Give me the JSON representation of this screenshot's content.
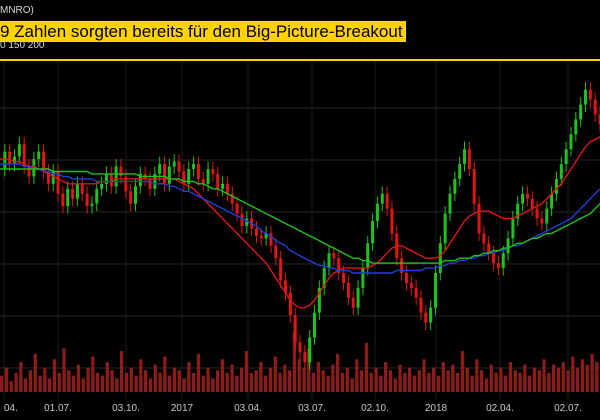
{
  "header": {
    "ticker": "MNRO)",
    "title": "9 Zahlen sorgten bereits für den Big-Picture-Breakout",
    "ma_legend": "0 150 200"
  },
  "colors": {
    "title_bg": "#ffd200",
    "resistance": "#ffd200",
    "up": "#1fc21f",
    "down": "#e01616",
    "ma_short": "#e01616",
    "ma_mid": "#1f3fd6",
    "ma_long": "#1fc21f",
    "volume": "#8a1c1c"
  },
  "chart_data": {
    "type": "line",
    "title": "9 Zahlen sorgten bereits für den Big-Picture-Breakout",
    "x_tick_labels": [
      "04.",
      "01.07.",
      "03.10.",
      "2017",
      "03.04.",
      "03.07.",
      "02.10.",
      "2018",
      "02.04.",
      "02.07."
    ],
    "series": [
      {
        "name": "price",
        "color": "#1fc21f",
        "values": [
          86,
          93,
          88,
          91,
          96,
          87,
          83,
          90,
          93,
          85,
          80,
          85,
          76,
          71,
          78,
          74,
          80,
          76,
          71,
          72,
          78,
          80,
          84,
          79,
          87,
          83,
          77,
          72,
          79,
          84,
          82,
          78,
          84,
          88,
          80,
          87,
          89,
          85,
          80,
          86,
          88,
          82,
          80,
          86,
          84,
          78,
          80,
          76,
          72,
          68,
          63,
          66,
          62,
          59,
          58,
          60,
          55,
          50,
          41,
          36,
          27,
          16,
          12,
          8,
          18,
          28,
          38,
          46,
          52,
          50,
          44,
          40,
          34,
          30,
          38,
          46,
          56,
          65,
          72,
          76,
          70,
          60,
          50,
          44,
          40,
          38,
          34,
          28,
          24,
          30,
          44,
          56,
          68,
          76,
          82,
          88,
          94,
          86,
          72,
          60,
          56,
          52,
          48,
          46,
          52,
          58,
          66,
          72,
          76,
          74,
          70,
          66,
          64,
          70,
          76,
          82,
          88,
          94,
          100,
          106,
          112,
          118,
          114,
          108,
          104
        ]
      },
      {
        "name": "ma_short",
        "color": "#e01616",
        "values": [
          90,
          90,
          90,
          89,
          89,
          88,
          87,
          87,
          86,
          85,
          84,
          83,
          82,
          81,
          80,
          80,
          80,
          80,
          80,
          80,
          80,
          81,
          81,
          81,
          82,
          82,
          82,
          82,
          82,
          82,
          82,
          82,
          82,
          82,
          82,
          82,
          82,
          81,
          80,
          79,
          78,
          76,
          74,
          72,
          70,
          68,
          66,
          64,
          62,
          60,
          58,
          56,
          54,
          52,
          50,
          48,
          45,
          42,
          39,
          36,
          33,
          31,
          30,
          30,
          31,
          33,
          36,
          39,
          42,
          44,
          45,
          46,
          46,
          46,
          46,
          46,
          46,
          47,
          48,
          50,
          52,
          54,
          55,
          55,
          54,
          53,
          52,
          51,
          50,
          50,
          50,
          51,
          53,
          56,
          59,
          62,
          65,
          67,
          68,
          69,
          69,
          69,
          68,
          67,
          66,
          66,
          66,
          67,
          68,
          69,
          70,
          71,
          72,
          74,
          76,
          78,
          80,
          83,
          86,
          89,
          92,
          95,
          97,
          98,
          99
        ]
      },
      {
        "name": "ma_mid",
        "color": "#1f3fd6",
        "values": [
          88,
          88,
          88,
          88,
          88,
          87,
          87,
          86,
          86,
          85,
          85,
          84,
          84,
          83,
          83,
          82,
          82,
          82,
          82,
          82,
          81,
          81,
          81,
          81,
          81,
          81,
          81,
          81,
          81,
          81,
          81,
          81,
          80,
          80,
          80,
          79,
          79,
          78,
          77,
          77,
          76,
          75,
          74,
          73,
          72,
          71,
          70,
          69,
          68,
          67,
          66,
          65,
          64,
          63,
          61,
          60,
          59,
          57,
          56,
          55,
          53,
          52,
          51,
          50,
          49,
          48,
          47,
          47,
          46,
          46,
          45,
          45,
          45,
          44,
          44,
          44,
          44,
          44,
          44,
          44,
          44,
          44,
          45,
          45,
          45,
          45,
          45,
          45,
          46,
          46,
          46,
          47,
          47,
          48,
          48,
          49,
          49,
          50,
          50,
          51,
          51,
          52,
          52,
          53,
          53,
          54,
          55,
          55,
          56,
          57,
          58,
          59,
          60,
          61,
          62,
          63,
          64,
          65,
          66,
          68,
          70,
          72,
          74,
          76,
          78
        ]
      },
      {
        "name": "ma_long",
        "color": "#1fc21f",
        "values": [
          86,
          86,
          86,
          86,
          86,
          86,
          86,
          86,
          86,
          86,
          86,
          85,
          85,
          85,
          85,
          85,
          85,
          85,
          85,
          84,
          84,
          84,
          84,
          84,
          84,
          84,
          84,
          84,
          84,
          83,
          83,
          83,
          83,
          83,
          83,
          82,
          82,
          82,
          81,
          81,
          81,
          80,
          80,
          79,
          78,
          78,
          77,
          76,
          75,
          74,
          73,
          72,
          71,
          70,
          69,
          68,
          67,
          66,
          65,
          64,
          63,
          62,
          61,
          60,
          59,
          58,
          57,
          56,
          55,
          54,
          53,
          52,
          51,
          50,
          50,
          49,
          49,
          48,
          48,
          48,
          48,
          48,
          48,
          48,
          48,
          48,
          48,
          48,
          48,
          48,
          48,
          48,
          49,
          49,
          49,
          50,
          50,
          50,
          51,
          51,
          52,
          52,
          53,
          53,
          54,
          54,
          55,
          56,
          56,
          57,
          58,
          58,
          59,
          60,
          60,
          61,
          62,
          63,
          64,
          65,
          66,
          67,
          68,
          70,
          72
        ]
      }
    ],
    "ylim": [
      0,
      130
    ],
    "resistance_level": 118,
    "volume": [
      6,
      9,
      4,
      7,
      11,
      5,
      8,
      14,
      6,
      9,
      5,
      12,
      7,
      16,
      8,
      6,
      10,
      5,
      9,
      13,
      7,
      6,
      11,
      8,
      5,
      15,
      7,
      9,
      6,
      12,
      8,
      5,
      10,
      7,
      13,
      6,
      9,
      8,
      5,
      11,
      7,
      14,
      6,
      9,
      5,
      8,
      12,
      7,
      10,
      6,
      9,
      15,
      7,
      8,
      11,
      6,
      9,
      13,
      7,
      10,
      8,
      22,
      12,
      9,
      16,
      7,
      11,
      8,
      6,
      10,
      14,
      7,
      9,
      5,
      12,
      8,
      18,
      7,
      9,
      6,
      11,
      8,
      5,
      10,
      7,
      9,
      6,
      8,
      12,
      7,
      9,
      6,
      11,
      8,
      10,
      7,
      15,
      9,
      6,
      12,
      8,
      5,
      10,
      7,
      9,
      6,
      11,
      8,
      7,
      10,
      6,
      9,
      8,
      12,
      7,
      10,
      9,
      11,
      8,
      13,
      9,
      12,
      10,
      14,
      11
    ]
  }
}
